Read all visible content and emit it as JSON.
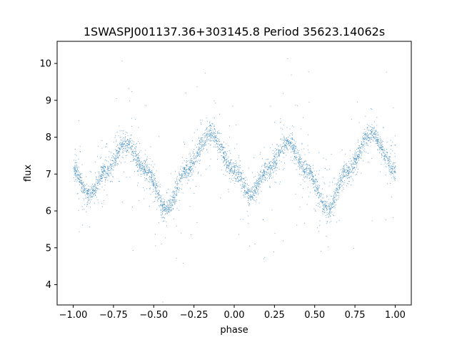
{
  "chart_data": {
    "type": "scatter",
    "title": "1SWASPJ001137.36+303145.8 Period 35623.14062s",
    "xlabel": "phase",
    "ylabel": "flux",
    "xlim": [
      -1.1,
      1.1
    ],
    "ylim": [
      3.45,
      10.6
    ],
    "xticks": [
      -1.0,
      -0.75,
      -0.5,
      -0.25,
      0.0,
      0.25,
      0.5,
      0.75,
      1.0
    ],
    "xtick_labels": [
      "−1.00",
      "−0.75",
      "−0.50",
      "−0.25",
      "0.00",
      "0.25",
      "0.50",
      "0.75",
      "1.00"
    ],
    "yticks": [
      4,
      5,
      6,
      7,
      8,
      9,
      10
    ],
    "ytick_labels": [
      "4",
      "5",
      "6",
      "7",
      "8",
      "9",
      "10"
    ],
    "grid": false,
    "marker_color": "#1f77b4",
    "series": [
      {
        "x": [
          -1.0,
          -0.9,
          -0.8,
          -0.67,
          -0.55,
          -0.42,
          -0.3,
          -0.15,
          0.0,
          0.1,
          0.2,
          0.33,
          0.45,
          0.58,
          0.7,
          0.85,
          1.0
        ],
        "values": [
          7.1,
          6.45,
          7.1,
          7.85,
          7.1,
          6.05,
          7.1,
          8.1,
          7.1,
          6.45,
          7.1,
          7.85,
          7.1,
          6.05,
          7.1,
          8.1,
          7.1
        ]
      }
    ]
  }
}
